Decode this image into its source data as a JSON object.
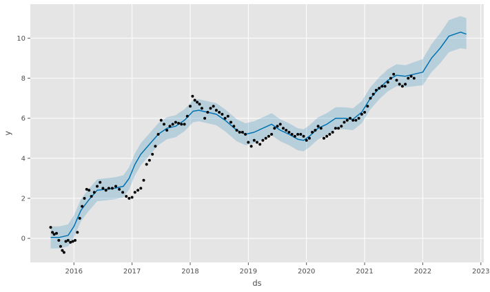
{
  "chart_data": {
    "type": "scatter",
    "title": "",
    "xlabel": "ds",
    "ylabel": "y",
    "xlim": [
      2015.25,
      2023.05
    ],
    "ylim": [
      -1.2,
      11.7
    ],
    "x_ticks": [
      2016,
      2017,
      2018,
      2019,
      2020,
      2021,
      2022,
      2023
    ],
    "x_tick_labels": [
      "2016",
      "2017",
      "2018",
      "2019",
      "2020",
      "2021",
      "2022",
      "2023"
    ],
    "y_ticks": [
      0,
      2,
      4,
      6,
      8,
      10
    ],
    "y_tick_labels": [
      "0",
      "2",
      "4",
      "6",
      "8",
      "10"
    ],
    "grid": true,
    "colors": {
      "background": "#e5e5e5",
      "grid": "#ffffff",
      "forecast_line": "#0072b2",
      "uncertainty_band": "#0072b2",
      "points": "#000000"
    },
    "series": [
      {
        "kind": "forecast",
        "x": [
          2015.6,
          2015.75,
          2015.9,
          2016.0,
          2016.12,
          2016.25,
          2016.4,
          2016.55,
          2016.7,
          2016.85,
          2016.95,
          2017.05,
          2017.15,
          2017.3,
          2017.45,
          2017.6,
          2017.75,
          2017.9,
          2018.05,
          2018.15,
          2018.3,
          2018.45,
          2018.6,
          2018.8,
          2018.95,
          2019.1,
          2019.25,
          2019.4,
          2019.55,
          2019.7,
          2019.85,
          2019.95,
          2020.05,
          2020.2,
          2020.35,
          2020.5,
          2020.65,
          2020.8,
          2020.95,
          2021.1,
          2021.25,
          2021.4,
          2021.55,
          2021.7,
          2021.85,
          2022.0,
          2022.15,
          2022.3,
          2022.45,
          2022.55,
          2022.65,
          2022.75
        ],
        "y": [
          0.05,
          0.05,
          0.15,
          0.6,
          1.4,
          1.9,
          2.4,
          2.45,
          2.5,
          2.6,
          3.0,
          3.7,
          4.2,
          4.7,
          5.2,
          5.5,
          5.6,
          5.9,
          6.35,
          6.4,
          6.3,
          6.2,
          5.9,
          5.4,
          5.2,
          5.3,
          5.5,
          5.7,
          5.4,
          5.2,
          4.95,
          4.9,
          5.1,
          5.5,
          5.7,
          6.0,
          6.0,
          5.95,
          6.3,
          7.0,
          7.5,
          7.9,
          8.15,
          8.1,
          8.2,
          8.3,
          9.0,
          9.5,
          10.1,
          10.2,
          10.3,
          10.2
        ],
        "lower": [
          -0.5,
          -0.5,
          -0.4,
          0.05,
          0.85,
          1.35,
          1.85,
          1.9,
          1.95,
          2.05,
          2.45,
          3.15,
          3.65,
          4.15,
          4.65,
          4.95,
          5.05,
          5.35,
          5.8,
          5.85,
          5.75,
          5.65,
          5.35,
          4.85,
          4.65,
          4.75,
          4.95,
          5.15,
          4.85,
          4.65,
          4.4,
          4.35,
          4.55,
          4.95,
          5.15,
          5.45,
          5.45,
          5.4,
          5.75,
          6.45,
          6.95,
          7.35,
          7.6,
          7.55,
          7.6,
          7.65,
          8.3,
          8.75,
          9.3,
          9.4,
          9.5,
          9.45
        ],
        "upper": [
          0.6,
          0.6,
          0.7,
          1.15,
          1.95,
          2.45,
          2.95,
          3.0,
          3.05,
          3.15,
          3.55,
          4.25,
          4.75,
          5.25,
          5.75,
          6.05,
          6.15,
          6.45,
          6.9,
          6.95,
          6.85,
          6.75,
          6.45,
          5.95,
          5.75,
          5.85,
          6.05,
          6.25,
          5.95,
          5.75,
          5.5,
          5.45,
          5.65,
          6.05,
          6.25,
          6.55,
          6.55,
          6.5,
          6.85,
          7.55,
          8.05,
          8.45,
          8.7,
          8.65,
          8.8,
          8.95,
          9.7,
          10.25,
          10.9,
          11.0,
          11.1,
          11.0
        ]
      },
      {
        "kind": "observed",
        "x": [
          2015.6,
          2015.63,
          2015.66,
          2015.7,
          2015.74,
          2015.77,
          2015.8,
          2015.83,
          2015.86,
          2015.9,
          2015.94,
          2015.98,
          2016.02,
          2016.06,
          2016.1,
          2016.14,
          2016.18,
          2016.22,
          2016.26,
          2016.3,
          2016.35,
          2016.4,
          2016.45,
          2016.5,
          2016.55,
          2016.6,
          2016.66,
          2016.72,
          2016.78,
          2016.84,
          2016.9,
          2016.95,
          2017.0,
          2017.05,
          2017.1,
          2017.15,
          2017.2,
          2017.25,
          2017.3,
          2017.35,
          2017.4,
          2017.45,
          2017.5,
          2017.55,
          2017.6,
          2017.65,
          2017.7,
          2017.75,
          2017.8,
          2017.85,
          2017.9,
          2017.95,
          2018.0,
          2018.04,
          2018.08,
          2018.12,
          2018.16,
          2018.2,
          2018.25,
          2018.3,
          2018.35,
          2018.4,
          2018.45,
          2018.5,
          2018.55,
          2018.6,
          2018.65,
          2018.7,
          2018.75,
          2018.8,
          2018.85,
          2018.9,
          2018.95,
          2019.0,
          2019.05,
          2019.1,
          2019.15,
          2019.2,
          2019.25,
          2019.3,
          2019.35,
          2019.4,
          2019.45,
          2019.5,
          2019.55,
          2019.6,
          2019.65,
          2019.7,
          2019.75,
          2019.8,
          2019.85,
          2019.9,
          2019.95,
          2020.0,
          2020.05,
          2020.1,
          2020.15,
          2020.2,
          2020.25,
          2020.3,
          2020.35,
          2020.4,
          2020.45,
          2020.5,
          2020.55,
          2020.6,
          2020.65,
          2020.7,
          2020.75,
          2020.8,
          2020.85,
          2020.9,
          2020.95,
          2021.0,
          2021.05,
          2021.1,
          2021.15,
          2021.2,
          2021.25,
          2021.3,
          2021.35,
          2021.4,
          2021.45,
          2021.5,
          2021.55,
          2021.6,
          2021.65,
          2021.7,
          2021.75,
          2021.8,
          2021.85
        ],
        "y": [
          0.55,
          0.3,
          0.2,
          0.25,
          -0.1,
          -0.4,
          -0.6,
          -0.7,
          -0.15,
          -0.1,
          -0.2,
          -0.15,
          -0.1,
          0.3,
          1.0,
          1.6,
          2.0,
          2.45,
          2.4,
          2.1,
          2.3,
          2.6,
          2.8,
          2.5,
          2.4,
          2.5,
          2.5,
          2.6,
          2.45,
          2.3,
          2.1,
          2.0,
          2.05,
          2.3,
          2.4,
          2.5,
          2.9,
          3.7,
          3.9,
          4.2,
          4.6,
          5.2,
          5.9,
          5.7,
          5.4,
          5.6,
          5.7,
          5.8,
          5.75,
          5.7,
          5.7,
          6.1,
          6.6,
          7.1,
          6.9,
          6.8,
          6.7,
          6.5,
          6.0,
          6.3,
          6.5,
          6.6,
          6.4,
          6.3,
          6.2,
          6.0,
          6.1,
          5.8,
          5.6,
          5.4,
          5.3,
          5.3,
          5.2,
          4.8,
          4.6,
          4.9,
          4.8,
          4.7,
          4.9,
          5.0,
          5.1,
          5.2,
          5.5,
          5.6,
          5.7,
          5.5,
          5.4,
          5.3,
          5.2,
          5.1,
          5.2,
          5.2,
          5.1,
          4.9,
          5.0,
          5.3,
          5.4,
          5.6,
          5.5,
          5.0,
          5.1,
          5.2,
          5.3,
          5.5,
          5.5,
          5.6,
          5.8,
          5.9,
          6.0,
          5.9,
          5.9,
          6.0,
          6.2,
          6.3,
          6.6,
          7.0,
          7.2,
          7.4,
          7.5,
          7.6,
          7.6,
          7.8,
          8.0,
          8.2,
          7.9,
          7.7,
          7.6,
          7.7,
          8.0,
          8.1,
          8.0
        ]
      }
    ]
  }
}
